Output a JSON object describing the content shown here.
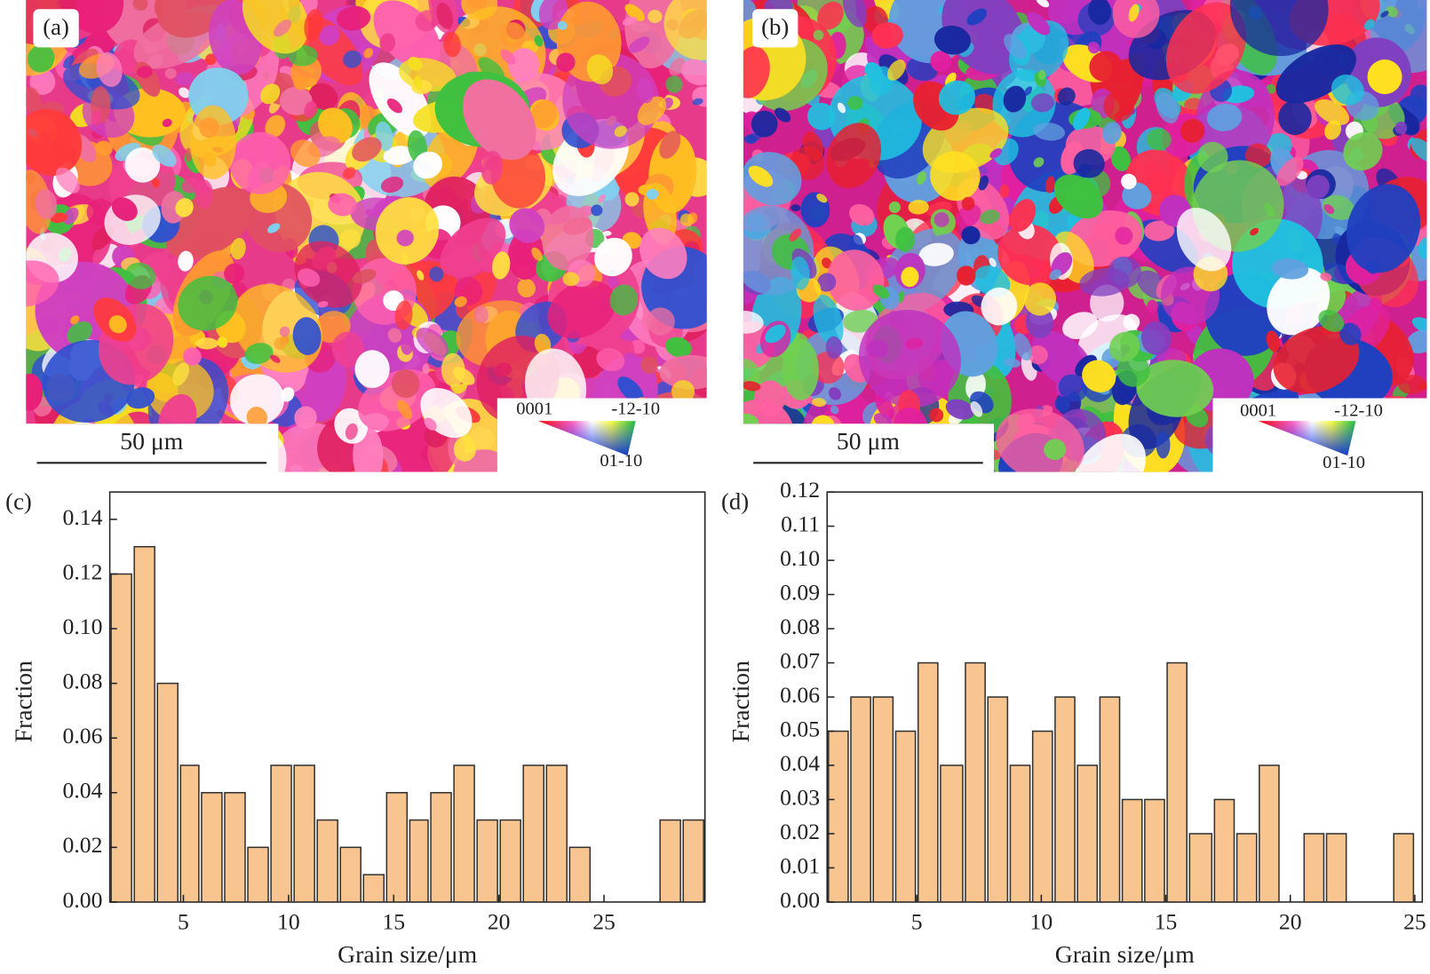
{
  "panels": [
    {
      "label": "(a)",
      "scale_bar": "50 μm",
      "legend": {
        "top_left": "0001",
        "top_right": "-12-10",
        "bottom": "01-10"
      }
    },
    {
      "label": "(b)",
      "scale_bar": "50 μm",
      "legend": {
        "top_left": "0001",
        "top_right": "-12-10",
        "bottom": "01-10"
      }
    }
  ],
  "chart_data": [
    {
      "type": "histogram",
      "label": "(c)",
      "x_label": "Grain size/μm",
      "y_label": "Fraction",
      "color": "#f8c590",
      "edge_color": "#333333",
      "bins": [
        1.5,
        2.6,
        3.7,
        4.8,
        5.8,
        6.9,
        8.0,
        9.1,
        10.2,
        11.3,
        12.4,
        13.5,
        14.6,
        15.7,
        16.7,
        17.8,
        18.9,
        20.0,
        21.1,
        22.2,
        23.3,
        24.4,
        25.5,
        26.6,
        27.6,
        28.7,
        29.8
      ],
      "values": [
        0.12,
        0.13,
        0.08,
        0.05,
        0.04,
        0.04,
        0.02,
        0.05,
        0.05,
        0.03,
        0.02,
        0.01,
        0.04,
        0.03,
        0.04,
        0.05,
        0.03,
        0.03,
        0.05,
        0.05,
        0.02,
        0,
        0,
        0,
        0.03,
        0.03
      ],
      "xlim": [
        1.5,
        29.8
      ],
      "xticks": [
        5,
        10,
        15,
        20,
        25
      ],
      "ylim": [
        0,
        0.15
      ],
      "yticks": [
        {
          "value": 0,
          "label": "0.00"
        },
        {
          "value": 0.02,
          "label": "0.02"
        },
        {
          "value": 0.04,
          "label": "0.04"
        },
        {
          "value": 0.06,
          "label": "0.06"
        },
        {
          "value": 0.08,
          "label": "0.08"
        },
        {
          "value": 0.1,
          "label": "0.10"
        },
        {
          "value": 0.12,
          "label": "0.12"
        },
        {
          "value": 0.14,
          "label": "0.14"
        }
      ]
    },
    {
      "type": "histogram",
      "label": "(d)",
      "x_label": "Grain size/μm",
      "y_label": "Fraction",
      "color": "#f8c590",
      "edge_color": "#333333",
      "bins": [
        1.4,
        2.3,
        3.2,
        4.1,
        5.0,
        5.9,
        6.9,
        7.8,
        8.7,
        9.6,
        10.5,
        11.4,
        12.3,
        13.2,
        14.1,
        15.0,
        15.9,
        16.9,
        17.8,
        18.7,
        19.6,
        20.5,
        21.4,
        22.3,
        23.2,
        24.1,
        25.0
      ],
      "values": [
        0.05,
        0.06,
        0.06,
        0.05,
        0.07,
        0.04,
        0.07,
        0.06,
        0.04,
        0.05,
        0.06,
        0.04,
        0.06,
        0.03,
        0.03,
        0.07,
        0.02,
        0.03,
        0.02,
        0.04,
        0,
        0.02,
        0.02,
        0,
        0,
        0.02
      ],
      "xlim": [
        1.4,
        25.3
      ],
      "xticks": [
        5,
        10,
        15,
        20,
        25
      ],
      "ylim": [
        0,
        0.12
      ],
      "yticks": [
        {
          "value": 0,
          "label": "0.00"
        },
        {
          "value": 0.01,
          "label": "0.01"
        },
        {
          "value": 0.02,
          "label": "0.02"
        },
        {
          "value": 0.03,
          "label": "0.03"
        },
        {
          "value": 0.04,
          "label": "0.04"
        },
        {
          "value": 0.05,
          "label": "0.05"
        },
        {
          "value": 0.06,
          "label": "0.06"
        },
        {
          "value": 0.07,
          "label": "0.07"
        },
        {
          "value": 0.08,
          "label": "0.08"
        },
        {
          "value": 0.09,
          "label": "0.09"
        },
        {
          "value": 0.1,
          "label": "0.10"
        },
        {
          "value": 0.11,
          "label": "0.11"
        },
        {
          "value": 0.12,
          "label": "0.12"
        }
      ]
    }
  ]
}
